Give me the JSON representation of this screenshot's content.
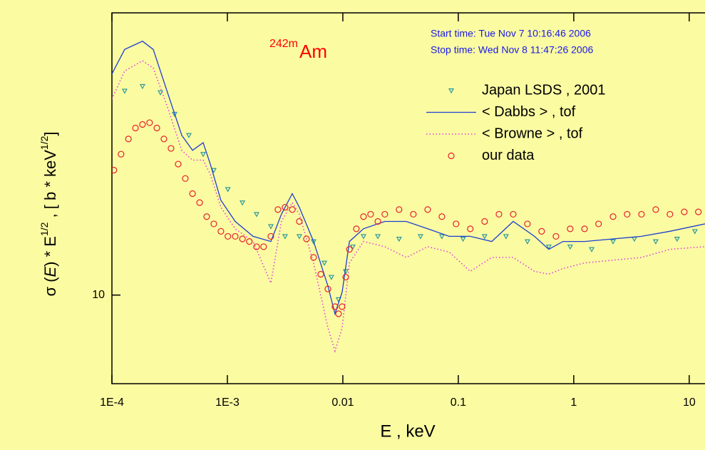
{
  "chart_data": {
    "type": "scatter",
    "title_sup": "242m",
    "title": "Am",
    "annotations": [
      "Start time: Tue Nov  7 10:16:46 2006",
      "Stop time: Wed Nov  8 11:47:26 2006"
    ],
    "ylabel": [
      "σ (",
      "E",
      ") * E",
      "1/2",
      "   ,  [ b * keV",
      "1/2",
      "]"
    ],
    "xlabel": "E   , keV",
    "xlog": true,
    "ylog": true,
    "xlim": [
      0.0001,
      13.7
    ],
    "ylim": [
      7.5,
      25
    ],
    "xticks": [
      {
        "value": 0.0001,
        "label": "1E-4"
      },
      {
        "value": 0.001,
        "label": "1E-3"
      },
      0.01,
      0.1,
      1,
      10
    ],
    "yticks": [
      10
    ],
    "legend": "upper right",
    "series": [
      {
        "name": "Japan LSDS , 2001",
        "style": "triangle",
        "color": "#2a9a9a",
        "x": [
          0.000129,
          0.000184,
          0.000263,
          0.000349,
          0.000464,
          0.000617,
          0.000763,
          0.00101,
          0.00135,
          0.00179,
          0.00238,
          0.00316,
          0.0042,
          0.00558,
          0.00692,
          0.00796,
          0.00918,
          0.0106,
          0.0122,
          0.0151,
          0.0201,
          0.0307,
          0.0471,
          0.0721,
          0.11,
          0.169,
          0.259,
          0.397,
          0.608,
          0.931,
          1.43,
          2.19,
          3.35,
          5.13,
          7.85,
          11.2
        ],
        "values": [
          19.4,
          19.7,
          19.3,
          18.0,
          16.8,
          15.8,
          15.0,
          14.1,
          13.5,
          13.0,
          12.5,
          12.1,
          12.1,
          11.9,
          11.1,
          10.6,
          9.86,
          10.8,
          11.7,
          12.1,
          12.1,
          12.0,
          12.1,
          12.1,
          12.0,
          12.1,
          12.1,
          11.9,
          11.7,
          11.7,
          11.6,
          11.9,
          12.0,
          11.9,
          12.0,
          12.3
        ]
      },
      {
        "name": "< Dabbs >  , tof",
        "style": "line",
        "color": "#1f3fd0",
        "x": [
          0.0001,
          0.000129,
          0.000184,
          0.000228,
          0.000303,
          0.000403,
          0.000499,
          0.000617,
          0.000711,
          0.000879,
          0.00117,
          0.00167,
          0.00238,
          0.00294,
          0.00365,
          0.0042,
          0.00558,
          0.00742,
          0.00855,
          0.00986,
          0.0114,
          0.0151,
          0.0231,
          0.0354,
          0.0543,
          0.0832,
          0.127,
          0.195,
          0.299,
          0.457,
          0.608,
          0.807,
          1.24,
          2.19,
          3.86,
          6.81,
          13.7
        ],
        "values": [
          20.5,
          22.2,
          22.8,
          22.2,
          19.3,
          16.8,
          16.0,
          16.4,
          15.3,
          13.6,
          12.7,
          12.1,
          11.9,
          13.0,
          13.9,
          13.3,
          11.9,
          10.3,
          9.41,
          10.1,
          11.9,
          12.4,
          12.7,
          12.7,
          12.4,
          12.1,
          12.1,
          11.9,
          12.7,
          12.1,
          11.6,
          11.9,
          11.9,
          12.0,
          12.1,
          12.3,
          12.6
        ]
      },
      {
        "name": "< Browne >  , tof",
        "style": "dotted",
        "color": "#e040e0",
        "x": [
          0.0001,
          0.000129,
          0.000184,
          0.000228,
          0.000303,
          0.000403,
          0.000499,
          0.000617,
          0.000711,
          0.000879,
          0.00117,
          0.00167,
          0.00238,
          0.00294,
          0.00365,
          0.0042,
          0.00558,
          0.00742,
          0.00855,
          0.00986,
          0.0114,
          0.0151,
          0.0231,
          0.0354,
          0.0543,
          0.0832,
          0.127,
          0.195,
          0.299,
          0.457,
          0.608,
          0.807,
          1.24,
          2.19,
          3.86,
          6.81,
          13.7
        ],
        "values": [
          18.9,
          20.7,
          21.4,
          20.9,
          18.4,
          16.0,
          15.5,
          15.5,
          14.8,
          13.3,
          12.4,
          11.9,
          10.4,
          12.7,
          13.5,
          13.0,
          11.1,
          8.99,
          8.34,
          8.99,
          11.1,
          11.9,
          11.7,
          11.3,
          11.7,
          11.5,
          10.8,
          11.3,
          11.3,
          10.8,
          10.7,
          10.9,
          11.1,
          11.2,
          11.3,
          11.6,
          11.7
        ]
      },
      {
        "name": "our data",
        "style": "circle",
        "color": "#e8202a",
        "x": [
          0.000104,
          0.00012,
          0.000139,
          0.00016,
          0.000184,
          0.000212,
          0.000245,
          0.000282,
          0.000325,
          0.000375,
          0.000432,
          0.000499,
          0.000575,
          0.000662,
          0.000763,
          0.000879,
          0.00101,
          0.00117,
          0.00135,
          0.00155,
          0.00179,
          0.00206,
          0.00238,
          0.00274,
          0.00316,
          0.00365,
          0.0042,
          0.00484,
          0.00558,
          0.00644,
          0.00742,
          0.00855,
          0.00918,
          0.00986,
          0.0106,
          0.0114,
          0.0131,
          0.0151,
          0.0174,
          0.0201,
          0.0231,
          0.0307,
          0.0408,
          0.0543,
          0.0721,
          0.0957,
          0.127,
          0.169,
          0.225,
          0.299,
          0.397,
          0.527,
          0.701,
          0.931,
          1.24,
          1.64,
          2.19,
          2.9,
          3.86,
          5.13,
          6.81,
          9.06,
          12.0
        ],
        "values": [
          15.0,
          15.8,
          16.6,
          17.2,
          17.4,
          17.5,
          17.2,
          16.6,
          16.1,
          15.3,
          14.6,
          13.9,
          13.5,
          12.9,
          12.6,
          12.3,
          12.1,
          12.1,
          12.0,
          11.9,
          11.7,
          11.7,
          12.1,
          13.2,
          13.3,
          13.2,
          12.7,
          12.0,
          11.3,
          10.7,
          10.2,
          9.63,
          9.41,
          9.63,
          10.6,
          11.6,
          12.4,
          12.9,
          13.0,
          12.7,
          13.0,
          13.2,
          13.0,
          13.2,
          12.9,
          12.6,
          12.4,
          12.7,
          13.0,
          13.0,
          12.6,
          12.3,
          12.1,
          12.4,
          12.4,
          12.6,
          12.9,
          13.0,
          13.0,
          13.2,
          13.0,
          13.1,
          13.1
        ]
      }
    ]
  }
}
